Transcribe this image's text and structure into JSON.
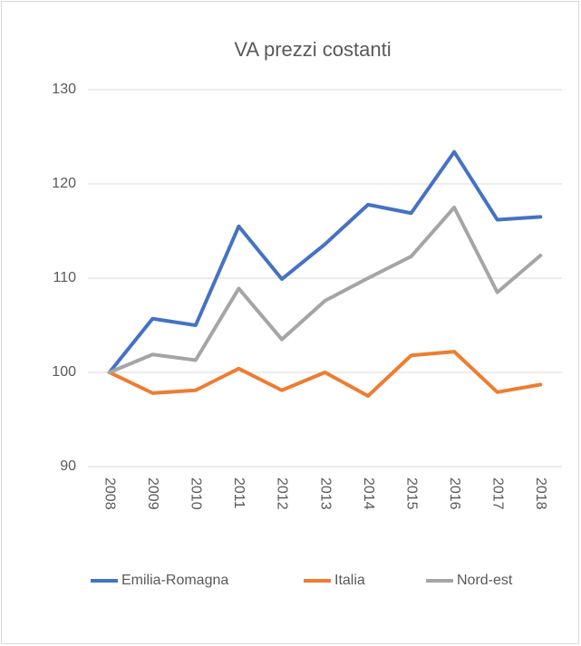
{
  "chart_data": {
    "type": "line",
    "title": "VA prezzi costanti",
    "categories": [
      "2008",
      "2009",
      "2010",
      "2011",
      "2012",
      "2013",
      "2014",
      "2015",
      "2016",
      "2017",
      "2018"
    ],
    "series": [
      {
        "name": "Emilia-Romagna",
        "color": "#4472c4",
        "values": [
          100,
          105.7,
          105.0,
          115.5,
          109.9,
          113.6,
          117.8,
          116.9,
          123.4,
          116.2,
          116.5
        ]
      },
      {
        "name": "Italia",
        "color": "#ed7d31",
        "values": [
          100,
          97.8,
          98.1,
          100.4,
          98.1,
          100.0,
          97.5,
          101.8,
          102.2,
          97.9,
          98.7
        ]
      },
      {
        "name": "Nord-est",
        "color": "#a5a5a5",
        "values": [
          100,
          101.9,
          101.3,
          108.9,
          103.5,
          107.6,
          110.0,
          112.3,
          117.5,
          108.5,
          112.4
        ]
      }
    ],
    "ylim": [
      90,
      130
    ],
    "yticks": [
      90,
      100,
      110,
      120,
      130
    ],
    "grid": true,
    "legend": "bottom"
  }
}
